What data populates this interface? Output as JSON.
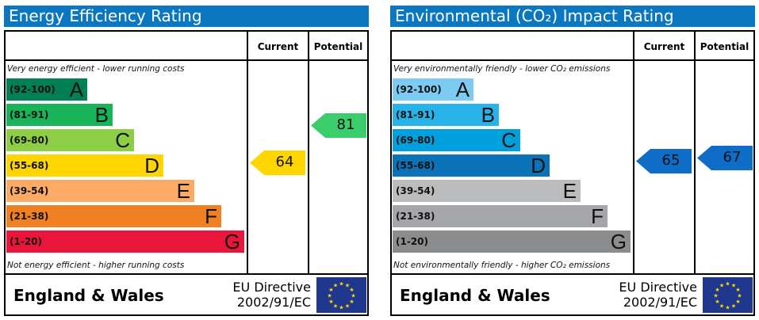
{
  "chart_data": [
    {
      "type": "bar",
      "title": "Energy Efficiency Rating",
      "column_headers": [
        "Current",
        "Potential"
      ],
      "top_note": "Very energy efficient - lower running costs",
      "bottom_note": "Not energy efficient - higher running costs",
      "bands": [
        {
          "range": "(92-100)",
          "letter": "A",
          "color": "#008054"
        },
        {
          "range": "(81-91)",
          "letter": "B",
          "color": "#19b459"
        },
        {
          "range": "(69-80)",
          "letter": "C",
          "color": "#8dce46"
        },
        {
          "range": "(55-68)",
          "letter": "D",
          "color": "#ffd500"
        },
        {
          "range": "(39-54)",
          "letter": "E",
          "color": "#fcaa65"
        },
        {
          "range": "(21-38)",
          "letter": "F",
          "color": "#ef8023"
        },
        {
          "range": "(1-20)",
          "letter": "G",
          "color": "#e9153b"
        }
      ],
      "current": {
        "value": "64",
        "color": "#ffd500"
      },
      "potential": {
        "value": "81",
        "color": "#3bcc6c"
      },
      "footer": {
        "region": "England & Wales",
        "directive_line1": "EU Directive",
        "directive_line2": "2002/91/EC"
      }
    },
    {
      "type": "bar",
      "title": "Environmental (CO₂) Impact Rating",
      "column_headers": [
        "Current",
        "Potential"
      ],
      "top_note": "Very environmentally friendly - lower CO₂ emissions",
      "bottom_note": "Not environmentally friendly - higher CO₂ emissions",
      "bands": [
        {
          "range": "(92-100)",
          "letter": "A",
          "color": "#7bcbf2"
        },
        {
          "range": "(81-91)",
          "letter": "B",
          "color": "#27b3e8"
        },
        {
          "range": "(69-80)",
          "letter": "C",
          "color": "#00a0dc"
        },
        {
          "range": "(55-68)",
          "letter": "D",
          "color": "#0c72b8"
        },
        {
          "range": "(39-54)",
          "letter": "E",
          "color": "#bbbcbe"
        },
        {
          "range": "(21-38)",
          "letter": "F",
          "color": "#a5a6a9"
        },
        {
          "range": "(1-20)",
          "letter": "G",
          "color": "#8b8c8e"
        }
      ],
      "current": {
        "value": "65",
        "color": "#0f6dc8"
      },
      "potential": {
        "value": "67",
        "color": "#0f6dc8"
      },
      "footer": {
        "region": "England & Wales",
        "directive_line1": "EU Directive",
        "directive_line2": "2002/91/EC"
      }
    }
  ]
}
